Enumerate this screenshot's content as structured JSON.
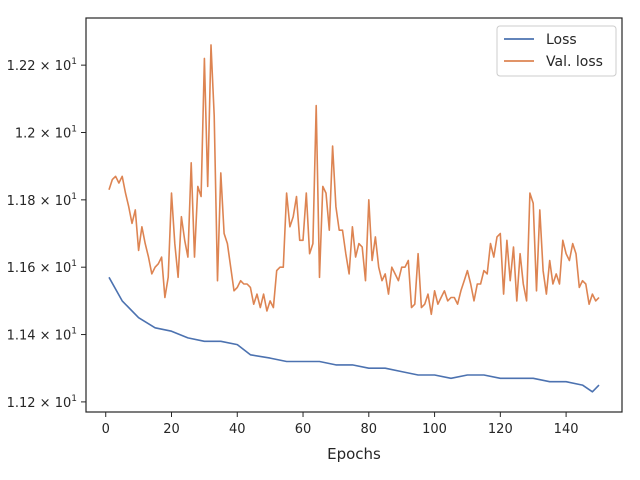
{
  "chart_data": {
    "type": "line",
    "title": "",
    "xlabel": "Epochs",
    "ylabel": "",
    "xlim": [
      -6,
      157
    ],
    "ylim": [
      11.17,
      12.34
    ],
    "x_ticks": [
      0,
      20,
      40,
      60,
      80,
      100,
      120,
      140
    ],
    "x_tick_labels": [
      "0",
      "20",
      "40",
      "60",
      "80",
      "100",
      "120",
      "140"
    ],
    "y_ticks": [
      11.2,
      11.4,
      11.6,
      11.8,
      12.0,
      12.2
    ],
    "y_tick_prefix": [
      "1.12 × 10",
      "1.14 × 10",
      "1.16 × 10",
      "1.18 × 10",
      "1.2 × 10",
      "1.22 × 10"
    ],
    "y_tick_exponent": "1",
    "grid": false,
    "legend_position": "top-right",
    "series": [
      {
        "name": "Loss",
        "color": "#4c72b0",
        "x": [
          1,
          5,
          10,
          15,
          20,
          25,
          30,
          35,
          40,
          44,
          50,
          55,
          60,
          65,
          70,
          75,
          80,
          85,
          90,
          95,
          100,
          105,
          110,
          115,
          120,
          125,
          130,
          135,
          140,
          145,
          148,
          150
        ],
        "values": [
          11.57,
          11.5,
          11.45,
          11.42,
          11.41,
          11.39,
          11.38,
          11.38,
          11.37,
          11.34,
          11.33,
          11.32,
          11.32,
          11.32,
          11.31,
          11.31,
          11.3,
          11.3,
          11.29,
          11.28,
          11.28,
          11.27,
          11.28,
          11.28,
          11.27,
          11.27,
          11.27,
          11.26,
          11.26,
          11.25,
          11.23,
          11.25
        ]
      },
      {
        "name": "Val. loss",
        "color": "#dd8452",
        "x": [
          1,
          2,
          3,
          4,
          5,
          6,
          7,
          8,
          9,
          10,
          11,
          12,
          13,
          14,
          15,
          16,
          17,
          18,
          19,
          20,
          21,
          22,
          23,
          24,
          25,
          26,
          27,
          28,
          29,
          30,
          31,
          32,
          33,
          34,
          35,
          36,
          37,
          38,
          39,
          40,
          41,
          42,
          43,
          44,
          45,
          46,
          47,
          48,
          49,
          50,
          51,
          52,
          53,
          54,
          55,
          56,
          57,
          58,
          59,
          60,
          61,
          62,
          63,
          64,
          65,
          66,
          67,
          68,
          69,
          70,
          71,
          72,
          73,
          74,
          75,
          76,
          77,
          78,
          79,
          80,
          81,
          82,
          83,
          84,
          85,
          86,
          87,
          88,
          89,
          90,
          91,
          92,
          93,
          94,
          95,
          96,
          97,
          98,
          99,
          100,
          101,
          102,
          103,
          104,
          105,
          106,
          107,
          108,
          109,
          110,
          111,
          112,
          113,
          114,
          115,
          116,
          117,
          118,
          119,
          120,
          121,
          122,
          123,
          124,
          125,
          126,
          127,
          128,
          129,
          130,
          131,
          132,
          133,
          134,
          135,
          136,
          137,
          138,
          139,
          140,
          141,
          142,
          143,
          144,
          145,
          146,
          147,
          148,
          149,
          150
        ],
        "values": [
          11.83,
          11.86,
          11.87,
          11.85,
          11.87,
          11.82,
          11.78,
          11.73,
          11.77,
          11.65,
          11.72,
          11.67,
          11.63,
          11.58,
          11.6,
          11.61,
          11.63,
          11.51,
          11.57,
          11.82,
          11.67,
          11.57,
          11.75,
          11.68,
          11.63,
          11.91,
          11.63,
          11.84,
          11.81,
          12.22,
          11.84,
          12.26,
          12.05,
          11.56,
          11.88,
          11.7,
          11.67,
          11.6,
          11.53,
          11.54,
          11.56,
          11.55,
          11.55,
          11.54,
          11.49,
          11.52,
          11.48,
          11.52,
          11.47,
          11.5,
          11.48,
          11.59,
          11.6,
          11.6,
          11.82,
          11.72,
          11.75,
          11.81,
          11.68,
          11.68,
          11.82,
          11.64,
          11.67,
          12.08,
          11.57,
          11.84,
          11.82,
          11.71,
          11.96,
          11.78,
          11.71,
          11.71,
          11.64,
          11.58,
          11.72,
          11.63,
          11.67,
          11.66,
          11.56,
          11.8,
          11.62,
          11.69,
          11.6,
          11.56,
          11.58,
          11.52,
          11.6,
          11.58,
          11.56,
          11.6,
          11.6,
          11.62,
          11.48,
          11.49,
          11.64,
          11.48,
          11.49,
          11.52,
          11.46,
          11.53,
          11.49,
          11.51,
          11.53,
          11.5,
          11.51,
          11.51,
          11.49,
          11.53,
          11.56,
          11.59,
          11.55,
          11.5,
          11.55,
          11.55,
          11.59,
          11.58,
          11.67,
          11.63,
          11.69,
          11.7,
          11.52,
          11.68,
          11.56,
          11.66,
          11.5,
          11.64,
          11.55,
          11.5,
          11.82,
          11.79,
          11.53,
          11.77,
          11.59,
          11.52,
          11.62,
          11.55,
          11.58,
          11.55,
          11.68,
          11.64,
          11.62,
          11.67,
          11.64,
          11.54,
          11.56,
          11.55,
          11.49,
          11.52,
          11.5,
          11.51
        ]
      }
    ]
  }
}
